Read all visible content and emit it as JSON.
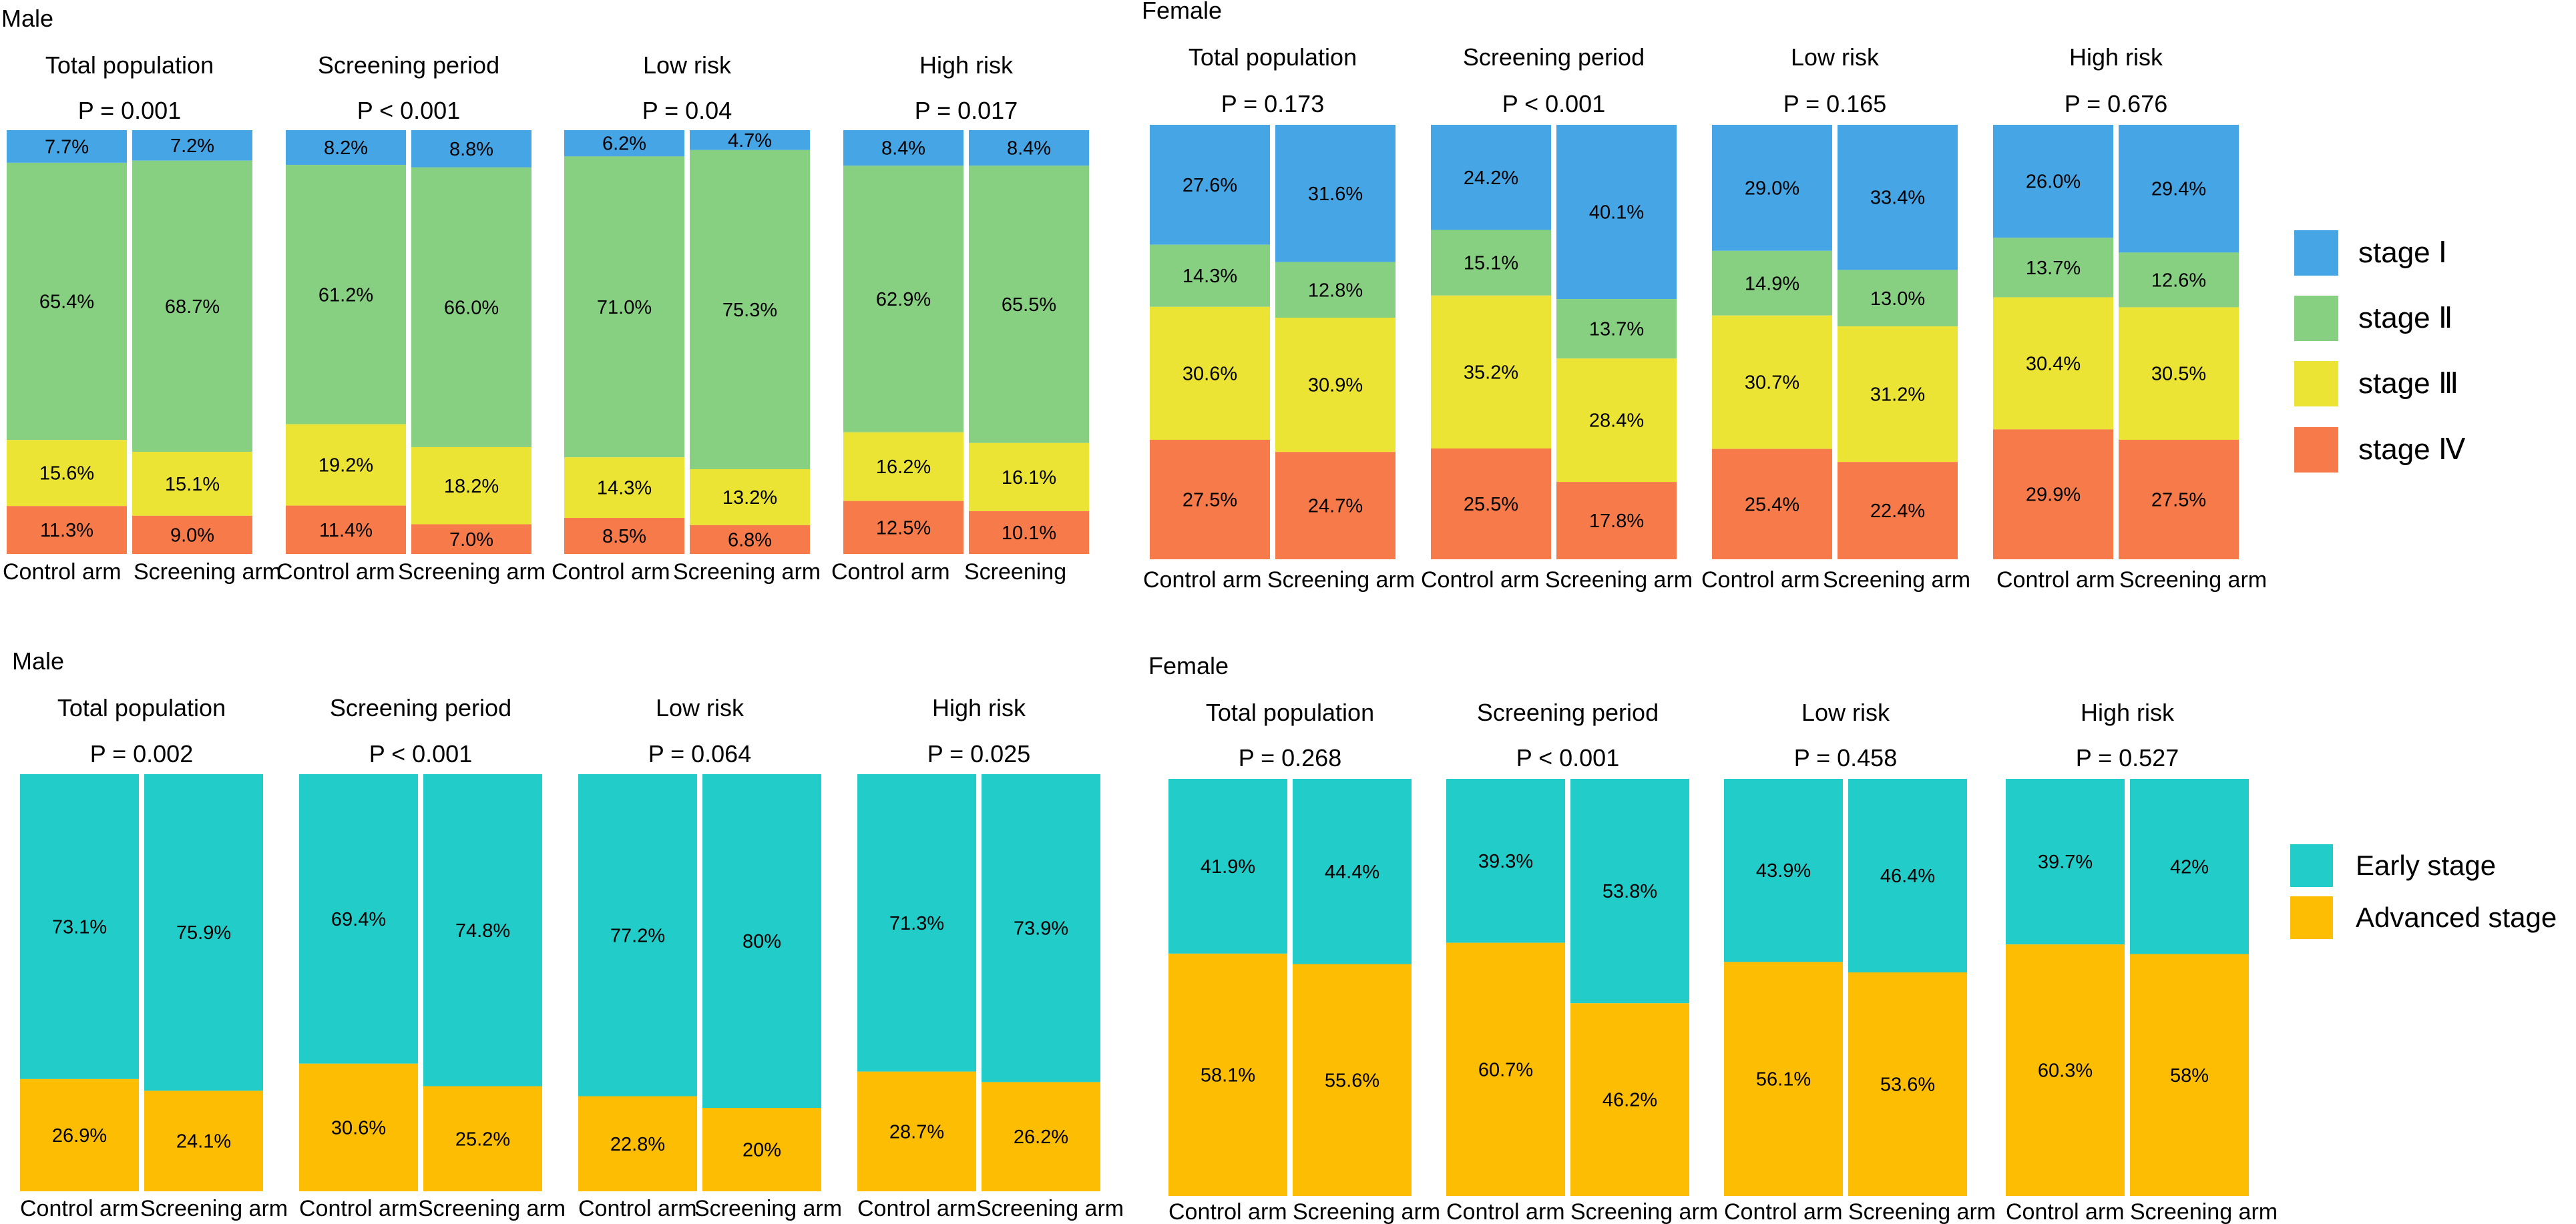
{
  "colors": {
    "stage_I": "#45a5e5",
    "stage_II": "#88d081",
    "stage_III": "#ebe434",
    "stage_IV": "#f77b4a",
    "early": "#22ccc9",
    "advanced": "#fdbd03"
  },
  "chart_data": [
    {
      "type": "bar",
      "stacked": true,
      "normalized": true,
      "section_label": "Male",
      "legend": [
        "stage Ⅰ",
        "stage Ⅱ",
        "stage Ⅲ",
        "stage Ⅳ"
      ],
      "panels": [
        {
          "title": "Total population",
          "p_value": "P = 0.001",
          "categories": [
            "Control arm",
            "Screening arm"
          ],
          "series": [
            {
              "name": "stage Ⅰ",
              "values": [
                7.7,
                7.2
              ],
              "labels": [
                "7.7%",
                "7.2%"
              ]
            },
            {
              "name": "stage Ⅱ",
              "values": [
                65.4,
                68.7
              ],
              "labels": [
                "65.4%",
                "68.7%"
              ]
            },
            {
              "name": "stage Ⅲ",
              "values": [
                15.6,
                15.1
              ],
              "labels": [
                "15.6%",
                "15.1%"
              ]
            },
            {
              "name": "stage Ⅳ",
              "values": [
                11.3,
                9.0
              ],
              "labels": [
                "11.3%",
                "9.0%"
              ]
            }
          ]
        },
        {
          "title": "Screening period",
          "p_value": "P < 0.001",
          "categories": [
            "Control arm",
            "Screening arm"
          ],
          "series": [
            {
              "name": "stage Ⅰ",
              "values": [
                8.2,
                8.8
              ],
              "labels": [
                "8.2%",
                "8.8%"
              ]
            },
            {
              "name": "stage Ⅱ",
              "values": [
                61.2,
                66.0
              ],
              "labels": [
                "61.2%",
                "66.0%"
              ]
            },
            {
              "name": "stage Ⅲ",
              "values": [
                19.2,
                18.2
              ],
              "labels": [
                "19.2%",
                "18.2%"
              ]
            },
            {
              "name": "stage Ⅳ",
              "values": [
                11.4,
                7.0
              ],
              "labels": [
                "11.4%",
                "7.0%"
              ]
            }
          ]
        },
        {
          "title": "Low risk",
          "p_value": "P = 0.04",
          "categories": [
            "Control arm",
            "Screening arm"
          ],
          "series": [
            {
              "name": "stage Ⅰ",
              "values": [
                6.2,
                4.7
              ],
              "labels": [
                "6.2%",
                "4.7%"
              ]
            },
            {
              "name": "stage Ⅱ",
              "values": [
                71.0,
                75.3
              ],
              "labels": [
                "71.0%",
                "75.3%"
              ]
            },
            {
              "name": "stage Ⅲ",
              "values": [
                14.3,
                13.2
              ],
              "labels": [
                "14.3%",
                "13.2%"
              ]
            },
            {
              "name": "stage Ⅳ",
              "values": [
                8.5,
                6.8
              ],
              "labels": [
                "8.5%",
                "6.8%"
              ]
            }
          ]
        },
        {
          "title": "High risk",
          "p_value": "P = 0.017",
          "categories": [
            "Control arm",
            "Screening"
          ],
          "series": [
            {
              "name": "stage Ⅰ",
              "values": [
                8.4,
                8.4
              ],
              "labels": [
                "8.4%",
                "8.4%"
              ]
            },
            {
              "name": "stage Ⅱ",
              "values": [
                62.9,
                65.5
              ],
              "labels": [
                "62.9%",
                "65.5%"
              ]
            },
            {
              "name": "stage Ⅲ",
              "values": [
                16.2,
                16.1
              ],
              "labels": [
                "16.2%",
                "16.1%"
              ]
            },
            {
              "name": "stage Ⅳ",
              "values": [
                12.5,
                10.1
              ],
              "labels": [
                "12.5%",
                "10.1%"
              ]
            }
          ]
        }
      ]
    },
    {
      "type": "bar",
      "stacked": true,
      "normalized": true,
      "section_label": "Female",
      "legend": [
        "stage Ⅰ",
        "stage Ⅱ",
        "stage Ⅲ",
        "stage Ⅳ"
      ],
      "panels": [
        {
          "title": "Total population",
          "p_value": "P = 0.173",
          "categories": [
            "Control arm",
            "Screening arm"
          ],
          "series": [
            {
              "name": "stage Ⅰ",
              "values": [
                27.6,
                31.6
              ],
              "labels": [
                "27.6%",
                "31.6%"
              ]
            },
            {
              "name": "stage Ⅱ",
              "values": [
                14.3,
                12.8
              ],
              "labels": [
                "14.3%",
                "12.8%"
              ]
            },
            {
              "name": "stage Ⅲ",
              "values": [
                30.6,
                30.9
              ],
              "labels": [
                "30.6%",
                "30.9%"
              ]
            },
            {
              "name": "stage Ⅳ",
              "values": [
                27.5,
                24.7
              ],
              "labels": [
                "27.5%",
                "24.7%"
              ]
            }
          ]
        },
        {
          "title": "Screening period",
          "p_value": "P < 0.001",
          "categories": [
            "Control arm",
            "Screening arm"
          ],
          "series": [
            {
              "name": "stage Ⅰ",
              "values": [
                24.2,
                40.1
              ],
              "labels": [
                "24.2%",
                "40.1%"
              ]
            },
            {
              "name": "stage Ⅱ",
              "values": [
                15.1,
                13.7
              ],
              "labels": [
                "15.1%",
                "13.7%"
              ]
            },
            {
              "name": "stage Ⅲ",
              "values": [
                35.2,
                28.4
              ],
              "labels": [
                "35.2%",
                "28.4%"
              ]
            },
            {
              "name": "stage Ⅳ",
              "values": [
                25.5,
                17.8
              ],
              "labels": [
                "25.5%",
                "17.8%"
              ]
            }
          ]
        },
        {
          "title": "Low risk",
          "p_value": "P = 0.165",
          "categories": [
            "Control arm",
            "Screening arm"
          ],
          "series": [
            {
              "name": "stage Ⅰ",
              "values": [
                29.0,
                33.4
              ],
              "labels": [
                "29.0%",
                "33.4%"
              ]
            },
            {
              "name": "stage Ⅱ",
              "values": [
                14.9,
                13.0
              ],
              "labels": [
                "14.9%",
                "13.0%"
              ]
            },
            {
              "name": "stage Ⅲ",
              "values": [
                30.7,
                31.2
              ],
              "labels": [
                "30.7%",
                "31.2%"
              ]
            },
            {
              "name": "stage Ⅳ",
              "values": [
                25.4,
                22.4
              ],
              "labels": [
                "25.4%",
                "22.4%"
              ]
            }
          ]
        },
        {
          "title": "High risk",
          "p_value": "P = 0.676",
          "categories": [
            "Control arm",
            "Screening arm"
          ],
          "series": [
            {
              "name": "stage Ⅰ",
              "values": [
                26.0,
                29.4
              ],
              "labels": [
                "26.0%",
                "29.4%"
              ]
            },
            {
              "name": "stage Ⅱ",
              "values": [
                13.7,
                12.6
              ],
              "labels": [
                "13.7%",
                "12.6%"
              ]
            },
            {
              "name": "stage Ⅲ",
              "values": [
                30.4,
                30.5
              ],
              "labels": [
                "30.4%",
                "30.5%"
              ]
            },
            {
              "name": "stage Ⅳ",
              "values": [
                29.9,
                27.5
              ],
              "labels": [
                "29.9%",
                "27.5%"
              ]
            }
          ]
        }
      ]
    },
    {
      "type": "bar",
      "stacked": true,
      "normalized": true,
      "section_label": "Male",
      "legend": [
        "Early stage",
        "Advanced stage"
      ],
      "panels": [
        {
          "title": "Total population",
          "p_value": "P = 0.002",
          "categories": [
            "Control arm",
            "Screening arm"
          ],
          "series": [
            {
              "name": "Early stage",
              "values": [
                73.1,
                75.9
              ],
              "labels": [
                "73.1%",
                "75.9%"
              ]
            },
            {
              "name": "Advanced stage",
              "values": [
                26.9,
                24.1
              ],
              "labels": [
                "26.9%",
                "24.1%"
              ]
            }
          ]
        },
        {
          "title": "Screening period",
          "p_value": "P < 0.001",
          "categories": [
            "Control arm",
            "Screening arm"
          ],
          "series": [
            {
              "name": "Early stage",
              "values": [
                69.4,
                74.8
              ],
              "labels": [
                "69.4%",
                "74.8%"
              ]
            },
            {
              "name": "Advanced stage",
              "values": [
                30.6,
                25.2
              ],
              "labels": [
                "30.6%",
                "25.2%"
              ]
            }
          ]
        },
        {
          "title": "Low risk",
          "p_value": "P = 0.064",
          "categories": [
            "Control arm",
            "Screening arm"
          ],
          "series": [
            {
              "name": "Early stage",
              "values": [
                77.2,
                80
              ],
              "labels": [
                "77.2%",
                "80%"
              ]
            },
            {
              "name": "Advanced stage",
              "values": [
                22.8,
                20
              ],
              "labels": [
                "22.8%",
                "20%"
              ]
            }
          ]
        },
        {
          "title": "High risk",
          "p_value": "P = 0.025",
          "categories": [
            "Control arm",
            "Screening arm"
          ],
          "series": [
            {
              "name": "Early stage",
              "values": [
                71.3,
                73.9
              ],
              "labels": [
                "71.3%",
                "73.9%"
              ]
            },
            {
              "name": "Advanced stage",
              "values": [
                28.7,
                26.2
              ],
              "labels": [
                "28.7%",
                "26.2%"
              ]
            }
          ]
        }
      ]
    },
    {
      "type": "bar",
      "stacked": true,
      "normalized": true,
      "section_label": "Female",
      "legend": [
        "Early stage",
        "Advanced stage"
      ],
      "panels": [
        {
          "title": "Total population",
          "p_value": "P = 0.268",
          "categories": [
            "Control arm",
            "Screening arm"
          ],
          "series": [
            {
              "name": "Early stage",
              "values": [
                41.9,
                44.4
              ],
              "labels": [
                "41.9%",
                "44.4%"
              ]
            },
            {
              "name": "Advanced stage",
              "values": [
                58.1,
                55.6
              ],
              "labels": [
                "58.1%",
                "55.6%"
              ]
            }
          ]
        },
        {
          "title": "Screening period",
          "p_value": "P < 0.001",
          "categories": [
            "Control arm",
            "Screening arm"
          ],
          "series": [
            {
              "name": "Early stage",
              "values": [
                39.3,
                53.8
              ],
              "labels": [
                "39.3%",
                "53.8%"
              ]
            },
            {
              "name": "Advanced stage",
              "values": [
                60.7,
                46.2
              ],
              "labels": [
                "60.7%",
                "46.2%"
              ]
            }
          ]
        },
        {
          "title": "Low risk",
          "p_value": "P = 0.458",
          "categories": [
            "Control arm",
            "Screening arm"
          ],
          "series": [
            {
              "name": "Early stage",
              "values": [
                43.9,
                46.4
              ],
              "labels": [
                "43.9%",
                "46.4%"
              ]
            },
            {
              "name": "Advanced stage",
              "values": [
                56.1,
                53.6
              ],
              "labels": [
                "56.1%",
                "53.6%"
              ]
            }
          ]
        },
        {
          "title": "High risk",
          "p_value": "P = 0.527",
          "categories": [
            "Control arm",
            "Screening arm"
          ],
          "series": [
            {
              "name": "Early stage",
              "values": [
                39.7,
                42
              ],
              "labels": [
                "39.7%",
                "42%"
              ]
            },
            {
              "name": "Advanced stage",
              "values": [
                60.3,
                58
              ],
              "labels": [
                "60.3%",
                "58%"
              ]
            }
          ]
        }
      ]
    }
  ]
}
